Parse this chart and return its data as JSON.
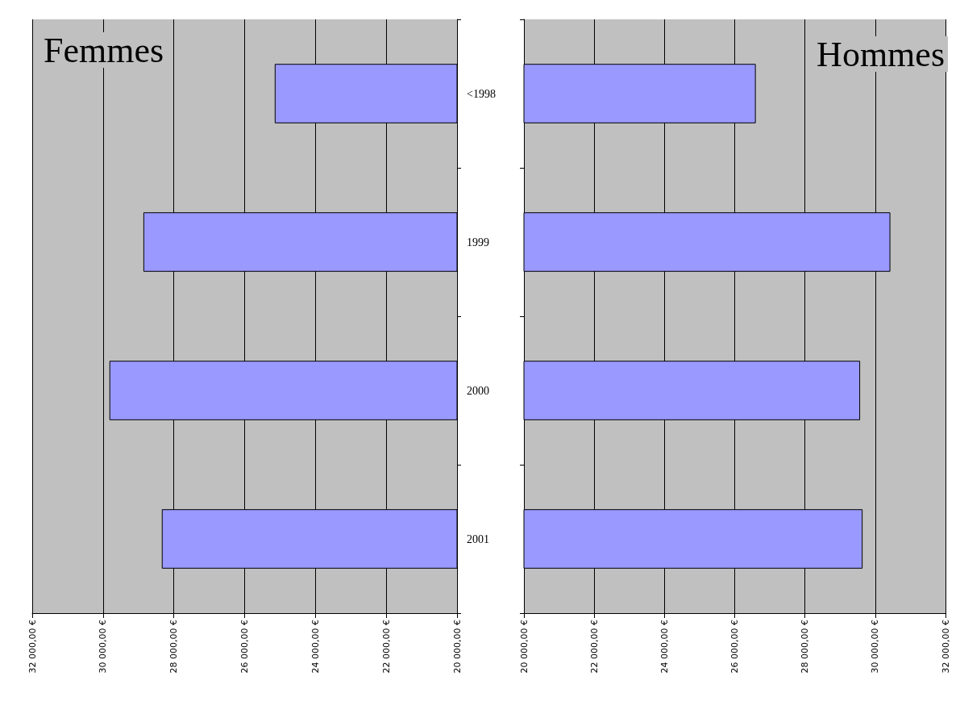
{
  "chart_data": [
    {
      "type": "bar",
      "orientation": "horizontal",
      "title": "Femmes",
      "categories": [
        "<1998",
        "1999",
        "2000",
        "2001"
      ],
      "series": [
        {
          "color": "#9999ff",
          "values": [
            25150,
            28860,
            29820,
            28340
          ]
        }
      ],
      "xlim": [
        32000,
        20000
      ],
      "xticks": [
        {
          "value": 32000,
          "label": "32 000,00 €"
        },
        {
          "value": 30000,
          "label": "30 000,00 €"
        },
        {
          "value": 28000,
          "label": "28 000,00 €"
        },
        {
          "value": 26000,
          "label": "26 000,00 €"
        },
        {
          "value": 24000,
          "label": "24 000,00 €"
        },
        {
          "value": 22000,
          "label": "22 000,00 €"
        },
        {
          "value": 20000,
          "label": "20 000,00 €"
        }
      ],
      "grid": "x"
    },
    {
      "type": "bar",
      "orientation": "horizontal",
      "title": "Hommes",
      "categories": [
        null,
        null,
        null,
        null
      ],
      "series": [
        {
          "color": "#9999ff",
          "values": [
            26600,
            30430,
            29570,
            29640
          ]
        }
      ],
      "xlim": [
        20000,
        32000
      ],
      "xticks": [
        {
          "value": 20000,
          "label": "20 000,00 €"
        },
        {
          "value": 22000,
          "label": "22 000,00 €"
        },
        {
          "value": 24000,
          "label": "24 000,00 €"
        },
        {
          "value": 26000,
          "label": "26 000,00 €"
        },
        {
          "value": 28000,
          "label": "28 000,00 €"
        },
        {
          "value": 30000,
          "label": "30 000,00 €"
        },
        {
          "value": 32000,
          "label": "32 000,00 €"
        }
      ],
      "grid": "x"
    }
  ]
}
